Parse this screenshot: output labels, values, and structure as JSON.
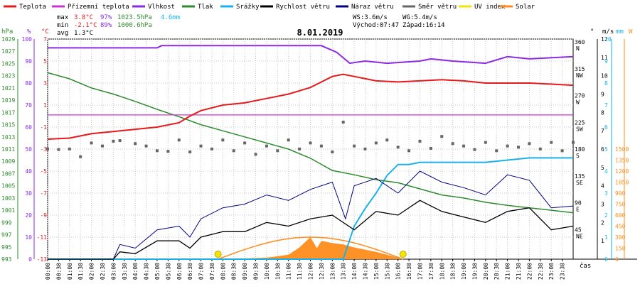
{
  "chart_data": {
    "type": "line",
    "title": "8.01.2019",
    "legend": [
      {
        "label": "Teplota",
        "color": "#e41a1c"
      },
      {
        "label": "Přízemní teplota",
        "color": "#cc33cc"
      },
      {
        "label": "Vlhkost",
        "color": "#8a2be2"
      },
      {
        "label": "Tlak",
        "color": "#2e8b2e"
      },
      {
        "label": "Srážky",
        "color": "#1ab2e6"
      },
      {
        "label": "Rychlost větru",
        "color": "#000000"
      },
      {
        "label": "Náraz větru",
        "color": "#000080"
      },
      {
        "label": "Směr větru",
        "color": "#666666"
      },
      {
        "label": "UV index",
        "color": "#f2e600"
      },
      {
        "label": "Solar",
        "color": "#ff8c1a"
      }
    ],
    "stats": {
      "max_label": "max",
      "max_temp": "3.8°C",
      "max_hum": "97%",
      "max_press": "1023.5hPa",
      "rain_total": "4.6mm",
      "min_label": "min",
      "min_temp": "-2.1°C",
      "min_hum": "89%",
      "min_press": "1000.6hPa",
      "avg_label": "avg",
      "avg_temp": "1.3°C",
      "ws": "WS:3.6m/s",
      "wg": "WG:5.4m/s",
      "sunrise": "Východ:07:47",
      "sunset": "Západ:16:14"
    },
    "axes": {
      "hpa_title": "hPa",
      "pct_title": "%",
      "temp_title": "°C",
      "dir_title": "°",
      "ms_title": "m/s",
      "mm_title": "mm",
      "w_title": "W",
      "x_title": "čas",
      "hpa_ticks": [
        "993",
        "995",
        "997",
        "999",
        "1001",
        "1003",
        "1005",
        "1007",
        "1009",
        "1011",
        "1013",
        "1015",
        "1017",
        "1019",
        "1021",
        "1023",
        "1025",
        "1027",
        "1029"
      ],
      "pct_ticks": [
        "0",
        "10",
        "20",
        "30",
        "40",
        "50",
        "60",
        "70",
        "80",
        "90",
        "100"
      ],
      "temp_ticks": [
        "-13",
        "-11",
        "-9",
        "-7",
        "-5",
        "-3",
        "-1",
        "1",
        "3",
        "5",
        "7"
      ],
      "dir_ticks": [
        "45\nNE",
        "90\nE",
        "135\nSE",
        "180\nS",
        "225\nSW",
        "270\nW",
        "315\nNW",
        "360\nN"
      ],
      "ms_ticks": [
        "1",
        "2",
        "3",
        "4",
        "5",
        "6",
        "7",
        "8",
        "9",
        "10",
        "11",
        "12"
      ],
      "mm_ticks": [
        "0",
        "1",
        "2",
        "3",
        "4",
        "5",
        "6",
        "7",
        "8",
        "9",
        "10"
      ],
      "w_ticks": [
        "0",
        "150",
        "300",
        "450",
        "600",
        "750",
        "900",
        "1050",
        "1200",
        "1350",
        "1500"
      ],
      "x_ticks": [
        "00:00",
        "00:30",
        "01:00",
        "01:30",
        "02:00",
        "02:30",
        "03:00",
        "03:30",
        "04:00",
        "04:30",
        "05:00",
        "05:30",
        "06:00",
        "06:30",
        "07:00",
        "07:30",
        "08:00",
        "08:30",
        "09:00",
        "09:30",
        "10:00",
        "10:30",
        "11:00",
        "11:30",
        "12:00",
        "12:30",
        "13:00",
        "13:30",
        "14:00",
        "14:30",
        "15:00",
        "15:30",
        "16:00",
        "16:30",
        "17:00",
        "17:30",
        "18:00",
        "18:30",
        "19:00",
        "19:30",
        "20:00",
        "20:30",
        "21:00",
        "21:30",
        "22:00",
        "22:30",
        "23:00",
        "23:30"
      ]
    },
    "ranges": {
      "temp": [
        -13,
        7
      ],
      "hum": [
        0,
        100
      ],
      "press": [
        993,
        1029
      ],
      "wind": [
        0,
        12
      ],
      "rain": [
        0,
        10
      ],
      "solar": [
        0,
        1500
      ],
      "hours": [
        0,
        24
      ]
    },
    "series": [
      {
        "name": "Teplota",
        "points": [
          [
            0,
            -2.1
          ],
          [
            1,
            -2.0
          ],
          [
            2,
            -1.6
          ],
          [
            3,
            -1.4
          ],
          [
            4,
            -1.2
          ],
          [
            5,
            -1.0
          ],
          [
            6,
            -0.6
          ],
          [
            6.5,
            0.0
          ],
          [
            7,
            0.5
          ],
          [
            8,
            1.0
          ],
          [
            9,
            1.2
          ],
          [
            10,
            1.6
          ],
          [
            11,
            2.0
          ],
          [
            12,
            2.6
          ],
          [
            13,
            3.6
          ],
          [
            13.5,
            3.8
          ],
          [
            14,
            3.6
          ],
          [
            15,
            3.2
          ],
          [
            16,
            3.1
          ],
          [
            17,
            3.2
          ],
          [
            18,
            3.3
          ],
          [
            19,
            3.2
          ],
          [
            20,
            3.0
          ],
          [
            21,
            3.0
          ],
          [
            22,
            3.0
          ],
          [
            23,
            2.9
          ],
          [
            24,
            2.8
          ]
        ]
      },
      {
        "name": "Přízemní teplota",
        "points": [
          [
            0,
            0.1
          ],
          [
            24,
            0.1
          ]
        ]
      },
      {
        "name": "Vlhkost",
        "points": [
          [
            0,
            96
          ],
          [
            5,
            96
          ],
          [
            5.2,
            97
          ],
          [
            12.5,
            97
          ],
          [
            13.2,
            94
          ],
          [
            13.8,
            89
          ],
          [
            14.5,
            90
          ],
          [
            15.5,
            89
          ],
          [
            17,
            90
          ],
          [
            17.5,
            91
          ],
          [
            18.5,
            90
          ],
          [
            20,
            89
          ],
          [
            21,
            92
          ],
          [
            22,
            91
          ],
          [
            24,
            92
          ]
        ]
      },
      {
        "name": "Tlak",
        "points": [
          [
            0,
            1023.5
          ],
          [
            1,
            1022.5
          ],
          [
            2,
            1021.0
          ],
          [
            3,
            1020.0
          ],
          [
            4,
            1018.8
          ],
          [
            5,
            1017.5
          ],
          [
            6,
            1016.3
          ],
          [
            7,
            1015.0
          ],
          [
            8,
            1014.0
          ],
          [
            9,
            1013.0
          ],
          [
            10,
            1012.0
          ],
          [
            11,
            1011.0
          ],
          [
            12,
            1009.5
          ],
          [
            13,
            1007.5
          ],
          [
            14,
            1006.8
          ],
          [
            15,
            1006.0
          ],
          [
            16,
            1005.5
          ],
          [
            17,
            1004.5
          ],
          [
            18,
            1003.5
          ],
          [
            19,
            1003.0
          ],
          [
            20,
            1002.3
          ],
          [
            21,
            1001.8
          ],
          [
            22,
            1001.4
          ],
          [
            23,
            1001.0
          ],
          [
            24,
            1000.6
          ]
        ]
      },
      {
        "name": "Srážky",
        "points": [
          [
            0,
            0
          ],
          [
            13.5,
            0
          ],
          [
            14,
            1.5
          ],
          [
            14.5,
            2.3
          ],
          [
            15,
            3.0
          ],
          [
            15.5,
            3.8
          ],
          [
            16,
            4.3
          ],
          [
            16.5,
            4.3
          ],
          [
            17,
            4.4
          ],
          [
            18,
            4.4
          ],
          [
            20,
            4.4
          ],
          [
            21,
            4.5
          ],
          [
            22,
            4.6
          ],
          [
            24,
            4.6
          ]
        ]
      },
      {
        "name": "Rychlost větru",
        "points": [
          [
            0,
            0
          ],
          [
            3,
            0
          ],
          [
            3.3,
            0.4
          ],
          [
            4,
            0.3
          ],
          [
            5,
            1.0
          ],
          [
            6,
            1.0
          ],
          [
            6.5,
            0.6
          ],
          [
            7,
            1.2
          ],
          [
            8,
            1.5
          ],
          [
            9,
            1.5
          ],
          [
            10,
            2.0
          ],
          [
            11,
            1.8
          ],
          [
            12,
            2.2
          ],
          [
            13,
            2.4
          ],
          [
            14,
            1.6
          ],
          [
            15,
            2.6
          ],
          [
            16,
            2.4
          ],
          [
            17,
            3.2
          ],
          [
            18,
            2.6
          ],
          [
            19,
            2.3
          ],
          [
            20,
            2.0
          ],
          [
            21,
            2.6
          ],
          [
            22,
            2.8
          ],
          [
            23,
            1.6
          ],
          [
            24,
            1.8
          ]
        ]
      },
      {
        "name": "Náraz větru",
        "points": [
          [
            0,
            0
          ],
          [
            3,
            0
          ],
          [
            3.3,
            0.8
          ],
          [
            4,
            0.6
          ],
          [
            5,
            1.6
          ],
          [
            6,
            1.8
          ],
          [
            6.5,
            1.2
          ],
          [
            7,
            2.2
          ],
          [
            8,
            2.8
          ],
          [
            9,
            3.0
          ],
          [
            10,
            3.5
          ],
          [
            11,
            3.2
          ],
          [
            12,
            3.8
          ],
          [
            13,
            4.2
          ],
          [
            13.6,
            2.2
          ],
          [
            14,
            4.0
          ],
          [
            15,
            4.4
          ],
          [
            16,
            3.6
          ],
          [
            17,
            4.8
          ],
          [
            18,
            4.2
          ],
          [
            19,
            3.9
          ],
          [
            20,
            3.5
          ],
          [
            21,
            4.6
          ],
          [
            22,
            4.3
          ],
          [
            23,
            2.8
          ],
          [
            24,
            2.9
          ]
        ]
      },
      {
        "name": "Solar",
        "points": [
          [
            7.8,
            0
          ],
          [
            8.5,
            5
          ],
          [
            9,
            10
          ],
          [
            10,
            20
          ],
          [
            11,
            60
          ],
          [
            11.5,
            160
          ],
          [
            12,
            300
          ],
          [
            12.3,
            150
          ],
          [
            12.5,
            250
          ],
          [
            13,
            220
          ],
          [
            13.5,
            200
          ],
          [
            14,
            160
          ],
          [
            15,
            100
          ],
          [
            16,
            20
          ],
          [
            16.2,
            0
          ]
        ]
      }
    ],
    "wind_direction_points": [
      [
        0,
        185
      ],
      [
        0.5,
        184
      ],
      [
        1,
        185
      ],
      [
        1.5,
        172
      ],
      [
        2,
        195
      ],
      [
        2.5,
        190
      ],
      [
        3,
        198
      ],
      [
        3.3,
        199
      ],
      [
        4,
        194
      ],
      [
        4.5,
        190
      ],
      [
        5,
        182
      ],
      [
        5.5,
        181
      ],
      [
        6,
        200
      ],
      [
        6.5,
        180
      ],
      [
        7,
        190
      ],
      [
        7.5,
        185
      ],
      [
        8,
        200
      ],
      [
        8.5,
        182
      ],
      [
        9,
        195
      ],
      [
        9.5,
        176
      ],
      [
        10,
        190
      ],
      [
        10.5,
        182
      ],
      [
        11,
        200
      ],
      [
        11.5,
        185
      ],
      [
        12,
        195
      ],
      [
        12.5,
        190
      ],
      [
        13,
        180
      ],
      [
        13.5,
        230
      ],
      [
        14,
        190
      ],
      [
        14.5,
        185
      ],
      [
        15,
        195
      ],
      [
        15.5,
        200
      ],
      [
        16,
        188
      ],
      [
        16.5,
        182
      ],
      [
        17,
        198
      ],
      [
        17.5,
        186
      ],
      [
        18,
        206
      ],
      [
        18.5,
        194
      ],
      [
        19,
        190
      ],
      [
        19.5,
        184
      ],
      [
        20,
        196
      ],
      [
        20.5,
        182
      ],
      [
        21,
        190
      ],
      [
        21.5,
        188
      ],
      [
        22,
        194
      ],
      [
        22.5,
        185
      ],
      [
        23,
        196
      ],
      [
        23.5,
        182
      ],
      [
        24,
        196
      ]
    ],
    "sun_markers": [
      [
        7.78,
        0
      ],
      [
        16.23,
        0
      ]
    ]
  }
}
